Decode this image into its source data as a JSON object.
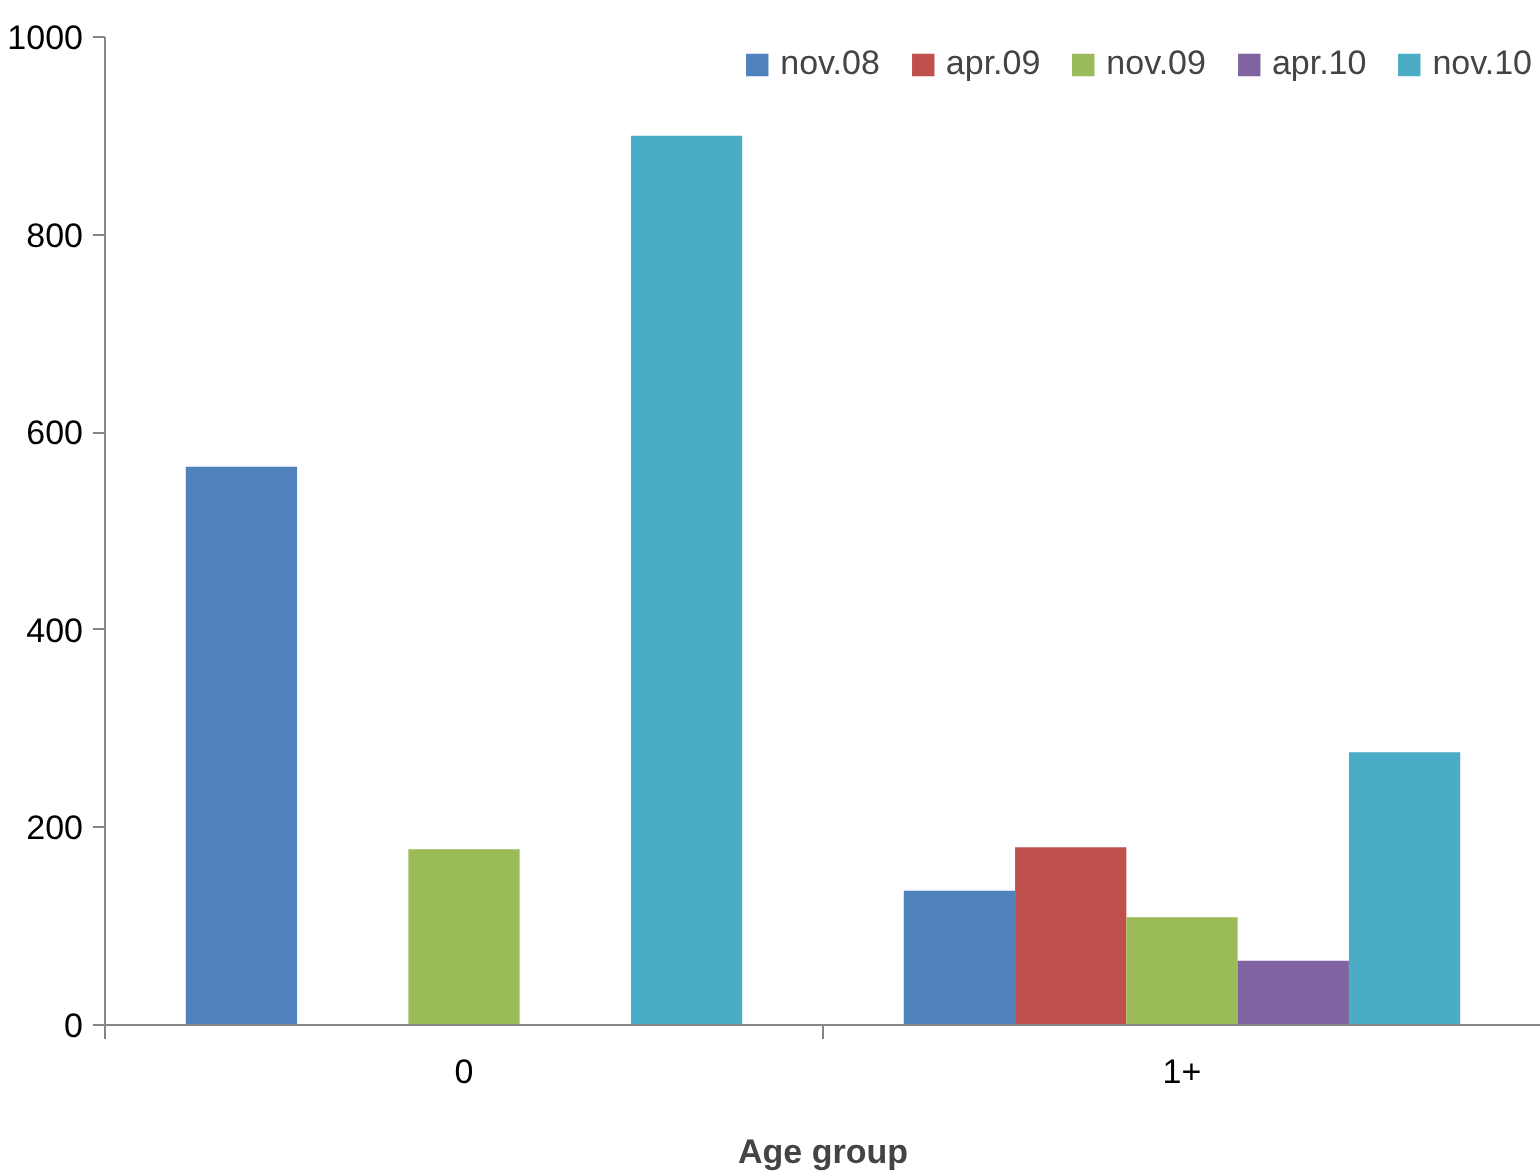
{
  "chart_data": {
    "type": "bar",
    "xlabel": "Age group",
    "categories": [
      "0",
      "1+"
    ],
    "series": [
      {
        "name": "nov.08",
        "color": "#4f81bd",
        "values": [
          565,
          136
        ]
      },
      {
        "name": "apr.09",
        "color": "#c0504d",
        "values": [
          null,
          180
        ]
      },
      {
        "name": "nov.09",
        "color": "#9bbb59",
        "values": [
          178,
          109
        ]
      },
      {
        "name": "apr.10",
        "color": "#8064a2",
        "values": [
          null,
          65
        ]
      },
      {
        "name": "nov.10",
        "color": "#4bacc6",
        "values": [
          900,
          276
        ]
      }
    ],
    "ylim": [
      0,
      1000
    ],
    "yticks": [
      0,
      200,
      400,
      600,
      800,
      1000
    ],
    "grid": false,
    "legend": "top right"
  }
}
